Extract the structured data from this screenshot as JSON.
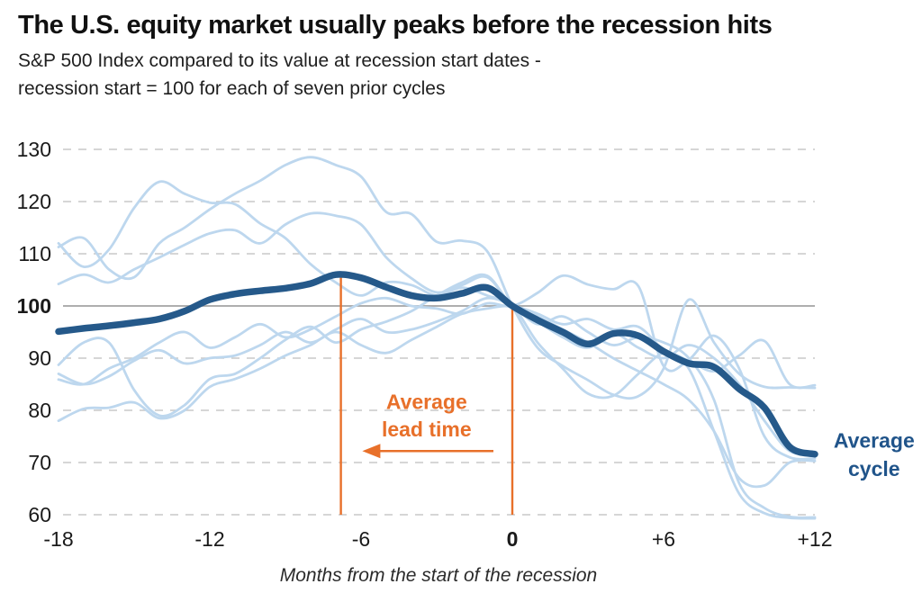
{
  "header": {
    "title": "The U.S. equity market usually peaks before the recession hits",
    "subtitle_line1": "S&P 500 Index compared to its value at recession start dates -",
    "subtitle_line2": "recession start = 100 for each of seven prior cycles"
  },
  "colors": {
    "average_line": "#25598A",
    "cycle_line": "#BDD7EE",
    "orange": "#E8702A",
    "grid_dashed": "#C8C8C8",
    "grid_solid_100": "#A3A3A3",
    "tick_text": "#1A1A1A",
    "axis_title_text": "#2B2B2B",
    "series_label_text": "#20548A"
  },
  "chart_data": {
    "type": "line",
    "title": "The U.S. equity market usually peaks before the recession hits",
    "xlabel": "Months from the start of the recession",
    "ylabel": "",
    "xlim": [
      -18,
      12
    ],
    "ylim": [
      60,
      130
    ],
    "grid": "horizontal-dashed, solid reference line at 100",
    "legend_position": "inline-right-label",
    "x": [
      -18,
      -17,
      -16,
      -15,
      -14,
      -13,
      -12,
      -11,
      -10,
      -9,
      -8,
      -7,
      -6,
      -5,
      -4,
      -3,
      -2,
      -1,
      0,
      1,
      2,
      3,
      4,
      5,
      6,
      7,
      8,
      9,
      10,
      11,
      12
    ],
    "series": [
      {
        "name": "cycle_1",
        "role": "prior-cycle",
        "values": [
          112.0,
          107.5,
          110.8,
          118.8,
          123.8,
          121.5,
          119.8,
          119.5,
          115.8,
          113.0,
          108.0,
          104.5,
          102.0,
          104.5,
          104.0,
          102.0,
          103.5,
          102.0,
          100.0,
          93.0,
          88.0,
          83.2,
          82.8,
          87.0,
          91.0,
          89.5,
          87.5,
          90.5,
          93.3,
          85.0,
          84.8
        ]
      },
      {
        "name": "cycle_2",
        "role": "prior-cycle",
        "values": [
          111.3,
          113.0,
          107.0,
          105.5,
          112.0,
          115.0,
          118.5,
          121.5,
          124.0,
          127.0,
          128.5,
          127.0,
          124.8,
          118.0,
          117.6,
          112.3,
          112.5,
          110.5,
          100.0,
          92.0,
          88.5,
          85.8,
          83.0,
          82.7,
          88.0,
          101.2,
          93.0,
          87.0,
          84.5,
          84.4,
          84.3
        ]
      },
      {
        "name": "cycle_3",
        "role": "prior-cycle",
        "values": [
          104.2,
          106.0,
          104.5,
          107.0,
          109.3,
          111.7,
          113.9,
          114.5,
          112.0,
          115.6,
          117.7,
          117.3,
          115.6,
          109.3,
          105.3,
          102.6,
          104.0,
          105.5,
          100.0,
          97.0,
          94.0,
          92.0,
          94.7,
          92.0,
          90.0,
          92.5,
          90.0,
          85.0,
          78.0,
          72.2,
          71.8
        ]
      },
      {
        "name": "cycle_4",
        "role": "prior-cycle",
        "values": [
          88.7,
          93.0,
          93.0,
          83.9,
          79.0,
          81.0,
          86.0,
          87.0,
          90.0,
          93.5,
          96.0,
          93.0,
          95.5,
          97.0,
          99.0,
          102.0,
          104.5,
          105.8,
          100.0,
          98.0,
          95.5,
          93.0,
          90.0,
          87.5,
          85.0,
          82.0,
          76.0,
          67.0,
          65.6,
          70.0,
          70.3
        ]
      },
      {
        "name": "cycle_5",
        "role": "prior-cycle",
        "values": [
          87.0,
          85.0,
          86.5,
          89.5,
          91.5,
          89.0,
          90.0,
          90.5,
          92.5,
          95.0,
          93.0,
          95.5,
          97.5,
          95.0,
          95.5,
          97.0,
          99.0,
          101.5,
          100.0,
          96.5,
          98.0,
          95.0,
          92.5,
          94.0,
          93.0,
          90.0,
          82.0,
          66.0,
          61.3,
          59.6,
          59.5
        ]
      },
      {
        "name": "cycle_6",
        "role": "prior-cycle",
        "values": [
          85.9,
          85.0,
          88.0,
          90.0,
          93.0,
          95.0,
          92.0,
          94.0,
          96.5,
          94.0,
          95.5,
          98.0,
          100.5,
          101.5,
          100.0,
          99.5,
          98.5,
          100.5,
          100.0,
          102.5,
          105.8,
          104.1,
          103.2,
          103.8,
          88.5,
          89.7,
          94.3,
          88.0,
          75.0,
          71.0,
          70.8
        ]
      },
      {
        "name": "cycle_7",
        "role": "prior-cycle",
        "values": [
          78.0,
          80.3,
          80.5,
          81.5,
          78.5,
          80.0,
          84.5,
          86.0,
          88.0,
          90.5,
          92.5,
          95.0,
          92.5,
          91.0,
          93.5,
          96.0,
          98.5,
          99.5,
          100.0,
          98.5,
          96.5,
          97.5,
          95.5,
          96.0,
          91.5,
          88.0,
          76.0,
          64.0,
          60.3,
          59.4,
          59.3
        ]
      },
      {
        "name": "Average cycle",
        "role": "average",
        "values": [
          95.1,
          95.7,
          96.2,
          96.8,
          97.5,
          99.0,
          101.2,
          102.3,
          102.9,
          103.4,
          104.3,
          106.0,
          105.4,
          103.6,
          102.0,
          101.5,
          102.4,
          103.5,
          100.0,
          97.3,
          95.0,
          92.7,
          94.7,
          94.3,
          91.3,
          89.0,
          88.3,
          84.1,
          80.5,
          73.0,
          71.6
        ]
      }
    ],
    "yticks": [
      {
        "value": 130,
        "label": "130",
        "bold": false
      },
      {
        "value": 120,
        "label": "120",
        "bold": false
      },
      {
        "value": 110,
        "label": "110",
        "bold": false
      },
      {
        "value": 100,
        "label": "100",
        "bold": true
      },
      {
        "value": 90,
        "label": "90",
        "bold": false
      },
      {
        "value": 80,
        "label": "80",
        "bold": false
      },
      {
        "value": 70,
        "label": "70",
        "bold": false
      },
      {
        "value": 60,
        "label": "60",
        "bold": false
      }
    ],
    "xticks": [
      {
        "value": -18,
        "label": "-18",
        "bold": false
      },
      {
        "value": -12,
        "label": "-12",
        "bold": false
      },
      {
        "value": -6,
        "label": "-6",
        "bold": false
      },
      {
        "value": 0,
        "label": "0",
        "bold": true
      },
      {
        "value": 6,
        "label": "+6",
        "bold": false
      },
      {
        "value": 12,
        "label": "+12",
        "bold": false
      }
    ],
    "reference_value": 100,
    "annotations": {
      "lead_time_label": {
        "lines": [
          "Average",
          "lead time"
        ],
        "x_month": -3.4,
        "y_values": [
          81.6,
          76.4
        ]
      },
      "lead_arrow": {
        "from_month": -0.75,
        "to_month": -5.95,
        "y_value": 72.2,
        "direction": "left"
      },
      "vlines": [
        {
          "name": "average-peak-line",
          "x_month": -6.8,
          "top_value": 105.6,
          "bottom_value": 60
        },
        {
          "name": "recession-start-line",
          "x_month": 0,
          "top_value": 99.4,
          "bottom_value": 60
        }
      ],
      "series_label": {
        "lines": [
          "Average",
          "cycle"
        ],
        "x_month": 14.35,
        "y_values": [
          74.2,
          68.8
        ]
      }
    }
  }
}
